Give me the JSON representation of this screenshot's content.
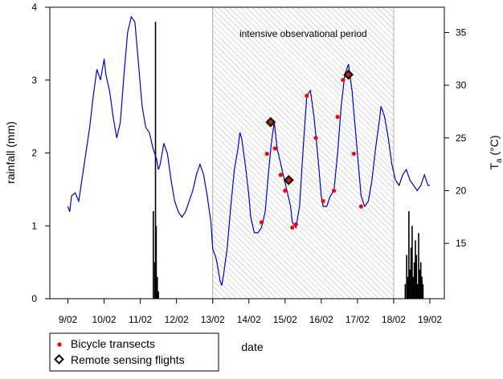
{
  "chart_data": {
    "type": "line",
    "x_axis": {
      "label": "date",
      "range": [
        8.5,
        19.4
      ],
      "ticks": [
        {
          "value": 9,
          "label": "9/02"
        },
        {
          "value": 10,
          "label": "10/02"
        },
        {
          "value": 11,
          "label": "11/02"
        },
        {
          "value": 12,
          "label": "12/02"
        },
        {
          "value": 13,
          "label": "13/02"
        },
        {
          "value": 14,
          "label": "14/02"
        },
        {
          "value": 15,
          "label": "15/02"
        },
        {
          "value": 16,
          "label": "16/02"
        },
        {
          "value": 17,
          "label": "17/02"
        },
        {
          "value": 18,
          "label": "18/02"
        },
        {
          "value": 19,
          "label": "19/02"
        }
      ]
    },
    "y_left": {
      "label": "rainfall (mm)",
      "range": [
        0,
        4
      ],
      "ticks": [
        0,
        1,
        2,
        3,
        4
      ]
    },
    "y_right": {
      "label_main": "T",
      "label_sub": "a",
      "label_unit": " (°C)",
      "range": [
        9.75,
        37.4
      ],
      "ticks": [
        15,
        20,
        25,
        30,
        35
      ]
    },
    "annotation": {
      "text": "intensive observational period",
      "x_start": 13.0,
      "x_end": 18.0
    },
    "temperature_series": {
      "color": "#0000cc",
      "points": [
        [
          9.0,
          18.5
        ],
        [
          9.05,
          18.0
        ],
        [
          9.1,
          19.5
        ],
        [
          9.2,
          19.8
        ],
        [
          9.3,
          19.0
        ],
        [
          9.45,
          22.5
        ],
        [
          9.6,
          26.0
        ],
        [
          9.7,
          29.0
        ],
        [
          9.8,
          31.5
        ],
        [
          9.9,
          30.5
        ],
        [
          10.0,
          32.5
        ],
        [
          10.05,
          31.0
        ],
        [
          10.15,
          29.5
        ],
        [
          10.25,
          27.0
        ],
        [
          10.35,
          25.0
        ],
        [
          10.45,
          26.5
        ],
        [
          10.55,
          31.0
        ],
        [
          10.65,
          35.0
        ],
        [
          10.75,
          36.5
        ],
        [
          10.85,
          36.0
        ],
        [
          10.95,
          32.0
        ],
        [
          11.05,
          28.0
        ],
        [
          11.15,
          26.0
        ],
        [
          11.25,
          25.5
        ],
        [
          11.35,
          24.0
        ],
        [
          11.45,
          23.0
        ],
        [
          11.5,
          22.0
        ],
        [
          11.55,
          22.5
        ],
        [
          11.65,
          24.5
        ],
        [
          11.75,
          23.5
        ],
        [
          11.85,
          21.0
        ],
        [
          11.95,
          19.0
        ],
        [
          12.05,
          18.0
        ],
        [
          12.15,
          17.5
        ],
        [
          12.25,
          18.0
        ],
        [
          12.35,
          19.0
        ],
        [
          12.45,
          20.0
        ],
        [
          12.55,
          21.5
        ],
        [
          12.65,
          22.5
        ],
        [
          12.75,
          21.5
        ],
        [
          12.85,
          19.5
        ],
        [
          12.95,
          17.0
        ],
        [
          13.0,
          14.5
        ],
        [
          13.05,
          14.0
        ],
        [
          13.1,
          13.5
        ],
        [
          13.15,
          12.5
        ],
        [
          13.2,
          11.5
        ],
        [
          13.25,
          11.0
        ],
        [
          13.3,
          12.0
        ],
        [
          13.4,
          14.5
        ],
        [
          13.5,
          18.5
        ],
        [
          13.6,
          22.0
        ],
        [
          13.7,
          24.0
        ],
        [
          13.75,
          25.5
        ],
        [
          13.8,
          25.0
        ],
        [
          13.9,
          22.5
        ],
        [
          14.0,
          19.5
        ],
        [
          14.05,
          17.5
        ],
        [
          14.15,
          16.0
        ],
        [
          14.25,
          16.0
        ],
        [
          14.35,
          16.5
        ],
        [
          14.45,
          18.0
        ],
        [
          14.55,
          22.0
        ],
        [
          14.62,
          24.5
        ],
        [
          14.7,
          26.5
        ],
        [
          14.78,
          24.0
        ],
        [
          14.85,
          23.0
        ],
        [
          14.95,
          21.5
        ],
        [
          15.05,
          20.0
        ],
        [
          15.15,
          18.5
        ],
        [
          15.2,
          17.0
        ],
        [
          15.3,
          16.5
        ],
        [
          15.4,
          18.5
        ],
        [
          15.5,
          24.0
        ],
        [
          15.6,
          29.0
        ],
        [
          15.7,
          29.5
        ],
        [
          15.8,
          27.0
        ],
        [
          15.9,
          23.5
        ],
        [
          16.0,
          19.5
        ],
        [
          16.05,
          18.5
        ],
        [
          16.15,
          18.5
        ],
        [
          16.25,
          19.5
        ],
        [
          16.35,
          20.0
        ],
        [
          16.45,
          23.5
        ],
        [
          16.55,
          28.0
        ],
        [
          16.65,
          31.0
        ],
        [
          16.75,
          32.0
        ],
        [
          16.85,
          29.5
        ],
        [
          16.95,
          25.5
        ],
        [
          17.05,
          21.5
        ],
        [
          17.1,
          19.5
        ],
        [
          17.2,
          18.5
        ],
        [
          17.3,
          19.0
        ],
        [
          17.4,
          21.0
        ],
        [
          17.5,
          24.0
        ],
        [
          17.6,
          26.5
        ],
        [
          17.65,
          28.0
        ],
        [
          17.75,
          27.0
        ],
        [
          17.85,
          25.0
        ],
        [
          17.95,
          22.5
        ],
        [
          18.05,
          21.0
        ],
        [
          18.15,
          20.5
        ],
        [
          18.25,
          21.5
        ],
        [
          18.35,
          22.0
        ],
        [
          18.45,
          21.0
        ],
        [
          18.55,
          20.5
        ],
        [
          18.65,
          20.0
        ],
        [
          18.75,
          20.5
        ],
        [
          18.85,
          21.5
        ],
        [
          18.95,
          20.5
        ],
        [
          19.0,
          20.5
        ]
      ]
    },
    "rainfall_series": {
      "color": "#000000",
      "bars": [
        [
          11.36,
          1.2
        ],
        [
          11.4,
          0.5
        ],
        [
          11.42,
          3.8
        ],
        [
          11.44,
          1.0
        ],
        [
          11.47,
          0.3
        ],
        [
          11.5,
          0.1
        ],
        [
          18.32,
          0.2
        ],
        [
          18.36,
          0.6
        ],
        [
          18.39,
          0.3
        ],
        [
          18.42,
          1.2
        ],
        [
          18.45,
          0.4
        ],
        [
          18.48,
          0.7
        ],
        [
          18.51,
          1.0
        ],
        [
          18.54,
          0.3
        ],
        [
          18.57,
          0.5
        ],
        [
          18.6,
          0.8
        ],
        [
          18.63,
          0.6
        ],
        [
          18.66,
          0.2
        ],
        [
          18.69,
          0.9
        ],
        [
          18.72,
          0.4
        ],
        [
          18.75,
          0.5
        ],
        [
          18.78,
          0.3
        ],
        [
          18.81,
          0.2
        ]
      ]
    },
    "bicycle_transects": [
      [
        14.35,
        17.0
      ],
      [
        14.5,
        23.5
      ],
      [
        14.72,
        24.0
      ],
      [
        14.88,
        21.5
      ],
      [
        15.0,
        20.0
      ],
      [
        15.2,
        16.5
      ],
      [
        15.3,
        16.8
      ],
      [
        15.6,
        29.0
      ],
      [
        15.85,
        25.0
      ],
      [
        16.05,
        19.0
      ],
      [
        16.35,
        20.0
      ],
      [
        16.45,
        27.0
      ],
      [
        16.6,
        30.5
      ],
      [
        16.9,
        23.5
      ],
      [
        17.1,
        18.5
      ]
    ],
    "remote_sensing_flights": [
      [
        14.6,
        26.5
      ],
      [
        15.1,
        21.0
      ],
      [
        16.75,
        31.0
      ]
    ],
    "legend": {
      "position": "bottom-left",
      "entries": [
        {
          "name": "Bicycle transects",
          "color": "#ff0000",
          "marker": "dot"
        },
        {
          "name": "Remote sensing flights",
          "color": "#000000",
          "marker": "diamond"
        }
      ]
    }
  }
}
